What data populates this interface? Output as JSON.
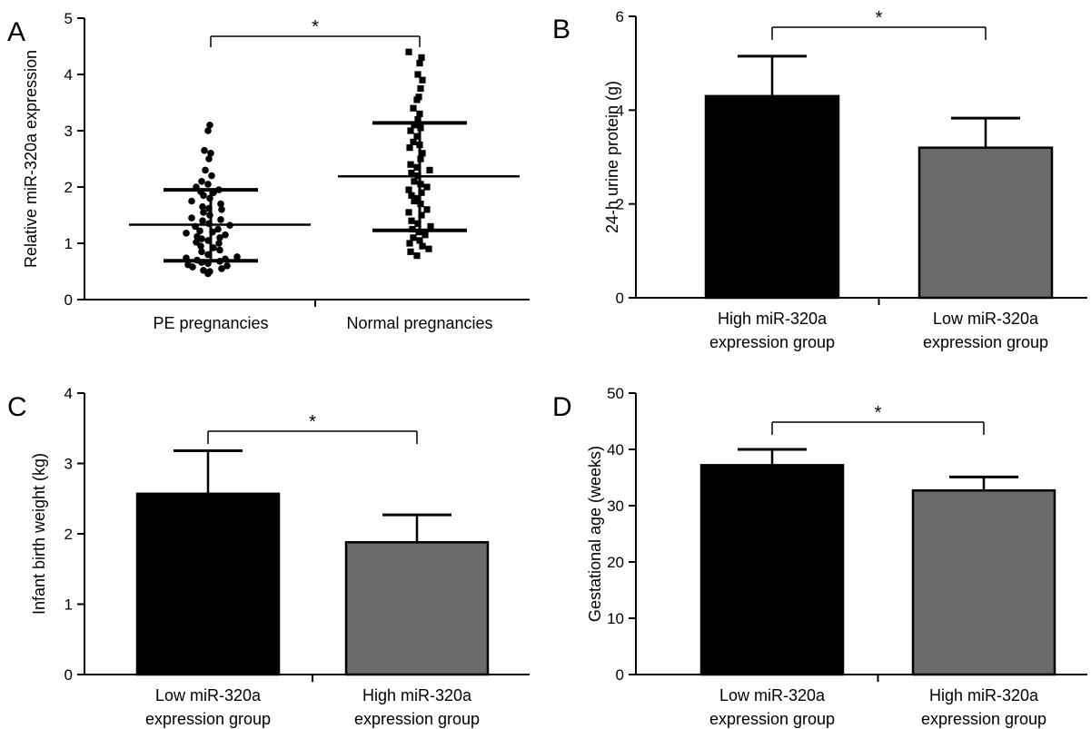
{
  "chart_data": [
    {
      "id": "A",
      "panel_label": "A",
      "type": "scatter",
      "ylabel": "Relative miR-320a expression",
      "ylim": [
        0,
        5
      ],
      "yticks": [
        "0",
        "1",
        "2",
        "3",
        "4",
        "5"
      ],
      "categories": [
        "PE pregnancies",
        "Normal pregnancies"
      ],
      "series": [
        {
          "values": [
            0.46,
            0.5,
            0.52,
            0.55,
            0.58,
            0.6,
            0.62,
            0.64,
            0.66,
            0.68,
            0.7,
            0.72,
            0.74,
            0.76,
            0.8,
            0.85,
            0.88,
            0.92,
            0.95,
            1.0,
            1.02,
            1.05,
            1.08,
            1.1,
            1.12,
            1.15,
            1.18,
            1.2,
            1.22,
            1.25,
            1.3,
            1.32,
            1.35,
            1.4,
            1.42,
            1.45,
            1.5,
            1.55,
            1.6,
            1.62,
            1.65,
            1.7,
            1.75,
            1.8,
            1.85,
            1.9,
            1.92,
            1.95,
            2.0,
            2.05,
            2.1,
            2.2,
            2.3,
            2.5,
            2.6,
            2.65,
            3.0,
            3.1
          ],
          "mean": 1.33,
          "sd_low": 0.69,
          "sd_high": 1.95
        },
        {
          "values": [
            0.78,
            0.85,
            0.9,
            0.95,
            1.0,
            1.05,
            1.1,
            1.15,
            1.2,
            1.25,
            1.3,
            1.35,
            1.4,
            1.5,
            1.55,
            1.6,
            1.7,
            1.75,
            1.8,
            1.85,
            1.9,
            1.95,
            2.0,
            2.05,
            2.1,
            2.2,
            2.25,
            2.3,
            2.35,
            2.4,
            2.5,
            2.6,
            2.7,
            2.75,
            2.8,
            2.9,
            3.0,
            3.05,
            3.1,
            3.2,
            3.3,
            3.4,
            3.55,
            3.6,
            3.75,
            3.9,
            4.0,
            4.2,
            4.3,
            4.4
          ],
          "mean": 2.19,
          "sd_low": 1.23,
          "sd_high": 3.14
        }
      ],
      "significance": "*"
    },
    {
      "id": "B",
      "panel_label": "B",
      "type": "bar",
      "ylabel": "24-h urine protein (g)",
      "ylim": [
        0,
        6
      ],
      "yticks": [
        "0",
        "2",
        "4",
        "6"
      ],
      "categories": [
        [
          "High miR-320a",
          "expression group"
        ],
        [
          "Low miR-320a",
          "expression group"
        ]
      ],
      "values": [
        4.3,
        3.2
      ],
      "errors": [
        0.85,
        0.63
      ],
      "colors": [
        "#000000",
        "#6b6b6b"
      ],
      "significance": "*"
    },
    {
      "id": "C",
      "panel_label": "C",
      "type": "bar",
      "ylabel": "Infant birth weight (kg)",
      "ylim": [
        0,
        4
      ],
      "yticks": [
        "0",
        "1",
        "2",
        "3",
        "4"
      ],
      "categories": [
        [
          "Low miR-320a",
          "expression group"
        ],
        [
          "High miR-320a",
          "expression group"
        ]
      ],
      "values": [
        2.57,
        1.88
      ],
      "errors": [
        0.61,
        0.39
      ],
      "colors": [
        "#000000",
        "#6b6b6b"
      ],
      "significance": "*"
    },
    {
      "id": "D",
      "panel_label": "D",
      "type": "bar",
      "ylabel": "Gestational age (weeks)",
      "ylim": [
        0,
        50
      ],
      "yticks": [
        "0",
        "10",
        "20",
        "30",
        "40",
        "50"
      ],
      "categories": [
        [
          "Low miR-320a",
          "expression group"
        ],
        [
          "High miR-320a",
          "expression group"
        ]
      ],
      "values": [
        37.2,
        32.7
      ],
      "errors": [
        2.8,
        2.4
      ],
      "colors": [
        "#000000",
        "#6b6b6b"
      ],
      "significance": "*"
    }
  ]
}
